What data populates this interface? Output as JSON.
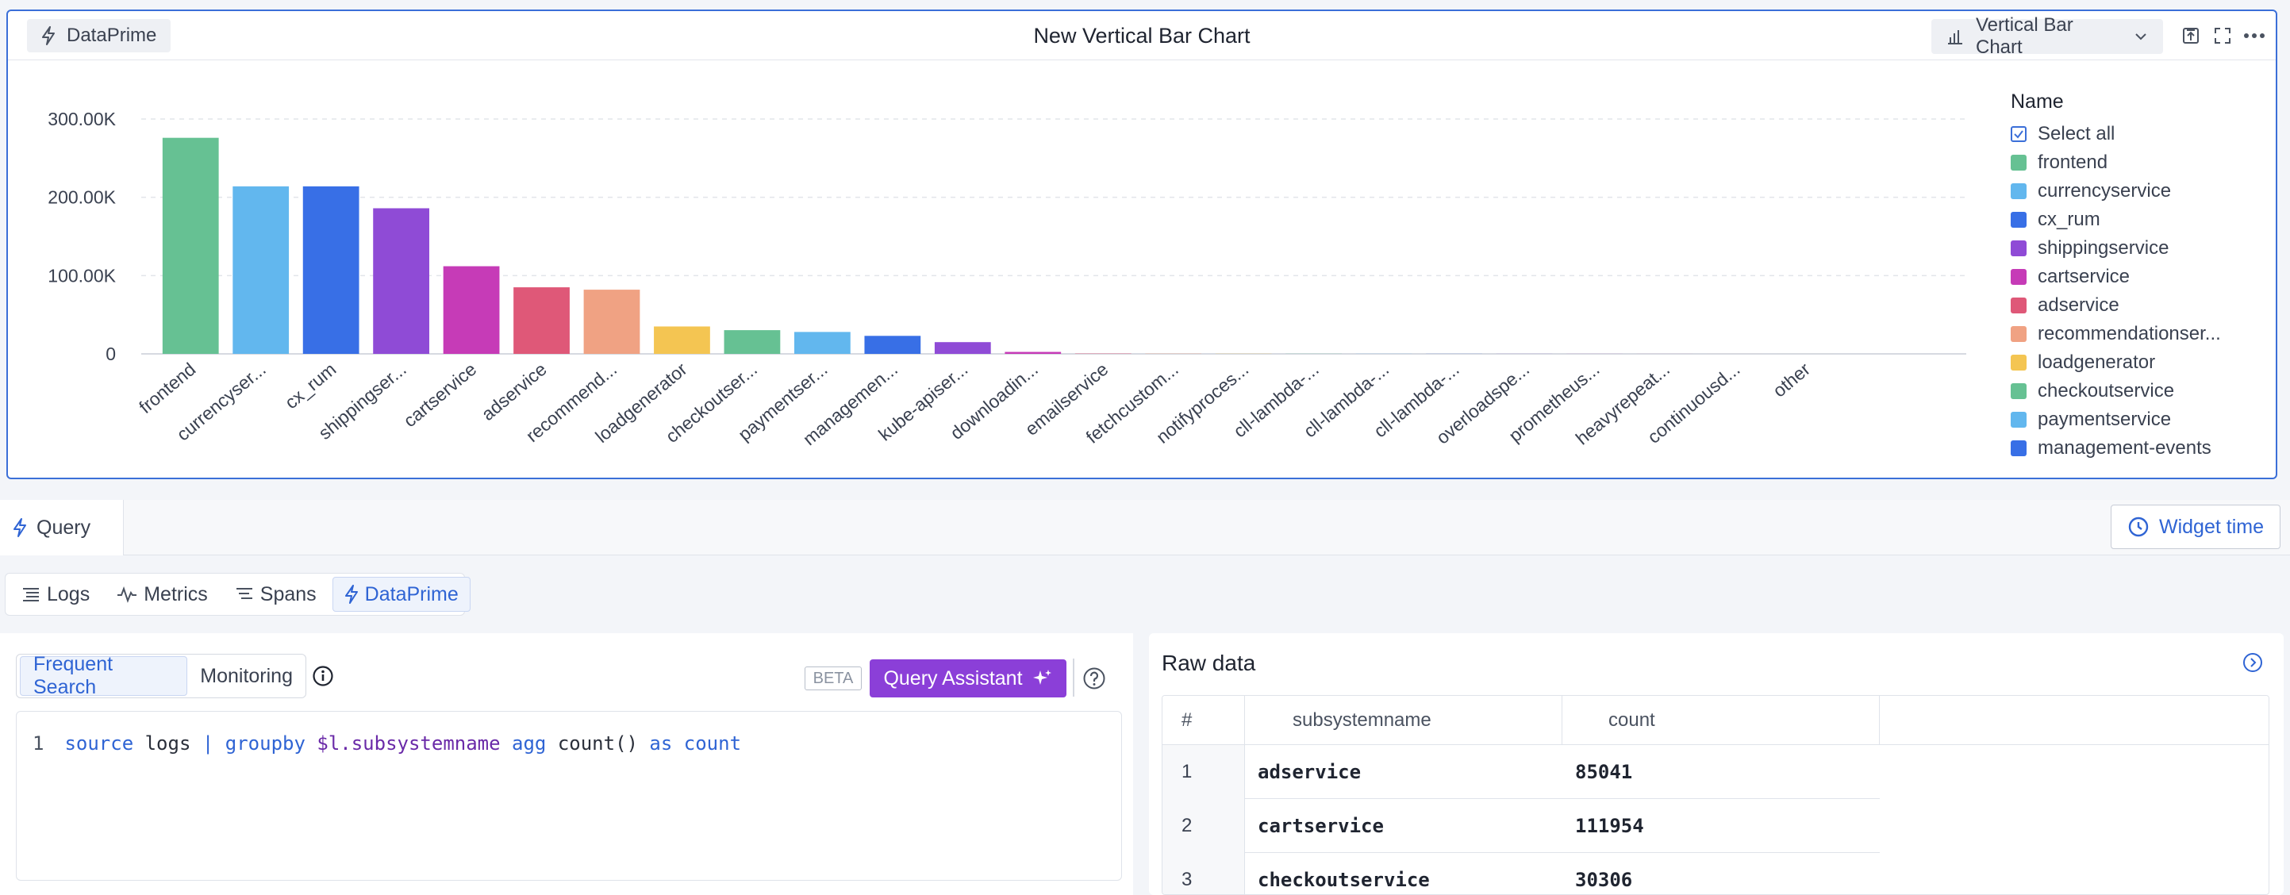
{
  "widget": {
    "source_badge": "DataPrime",
    "title": "New Vertical Bar Chart",
    "chart_type_label": "Vertical Bar Chart"
  },
  "chart_data": {
    "type": "bar",
    "categories": [
      "frontend",
      "currencyser...",
      "cx_rum",
      "shippingser...",
      "cartservice",
      "adservice",
      "recommend...",
      "loadgenerator",
      "checkoutser...",
      "paymentser...",
      "managemen...",
      "kube-apiser...",
      "downloadin...",
      "emailservice",
      "fetchcustom...",
      "notifyproces...",
      "cll-lambda-...",
      "cll-lambda-...",
      "cll-lambda-...",
      "overloadspe...",
      "prometheus...",
      "heavyrepeat...",
      "continuousd...",
      "other"
    ],
    "values": [
      276000,
      214000,
      214000,
      186000,
      111954,
      85041,
      82000,
      35000,
      30306,
      28000,
      23000,
      15000,
      2500,
      400,
      300,
      200,
      150,
      120,
      100,
      80,
      60,
      40,
      30,
      20
    ],
    "colors": [
      "#66c193",
      "#62b7ee",
      "#386fe6",
      "#8f4bd6",
      "#c63bb7",
      "#df5878",
      "#f0a283",
      "#f4c552",
      "#66c193",
      "#62b7ee",
      "#386fe6",
      "#8f4bd6",
      "#c63bb7",
      "#df5878",
      "#f0a283",
      "#f4c552",
      "#66c193",
      "#62b7ee",
      "#386fe6",
      "#8f4bd6",
      "#c63bb7",
      "#df5878",
      "#f0a283",
      "#f4c552"
    ],
    "y_ticks": [
      {
        "value": 0,
        "label": "0"
      },
      {
        "value": 100000,
        "label": "100.00K"
      },
      {
        "value": 200000,
        "label": "200.00K"
      },
      {
        "value": 300000,
        "label": "300.00K"
      }
    ],
    "ylim": [
      0,
      300000
    ],
    "grid": true,
    "legend": "right"
  },
  "legend": {
    "title": "Name",
    "select_all": "Select all",
    "items": [
      {
        "label": "frontend",
        "color": "#66c193"
      },
      {
        "label": "currencyservice",
        "color": "#62b7ee"
      },
      {
        "label": "cx_rum",
        "color": "#386fe6"
      },
      {
        "label": "shippingservice",
        "color": "#8f4bd6"
      },
      {
        "label": "cartservice",
        "color": "#c63bb7"
      },
      {
        "label": "adservice",
        "color": "#df5878"
      },
      {
        "label": "recommendationser...",
        "color": "#f0a283"
      },
      {
        "label": "loadgenerator",
        "color": "#f4c552"
      },
      {
        "label": "checkoutservice",
        "color": "#66c193"
      },
      {
        "label": "paymentservice",
        "color": "#62b7ee"
      },
      {
        "label": "management-events",
        "color": "#386fe6"
      }
    ]
  },
  "query": {
    "tab_label": "Query",
    "widget_time_label": "Widget time",
    "sources": [
      "Logs",
      "Metrics",
      "Spans",
      "DataPrime"
    ],
    "active_source": "DataPrime",
    "modes": [
      "Frequent Search",
      "Monitoring"
    ],
    "beta_label": "BETA",
    "assistant_label": "Query Assistant",
    "line_number": "1",
    "code_tokens": [
      {
        "t": "source",
        "c": "kw"
      },
      {
        "t": " logs ",
        "c": "pl"
      },
      {
        "t": "|",
        "c": "kw"
      },
      {
        "t": " ",
        "c": "pl"
      },
      {
        "t": "groupby",
        "c": "kw"
      },
      {
        "t": " ",
        "c": "pl"
      },
      {
        "t": "$l.subsystemname",
        "c": "var"
      },
      {
        "t": " ",
        "c": "pl"
      },
      {
        "t": "agg",
        "c": "kw"
      },
      {
        "t": " count() ",
        "c": "pl"
      },
      {
        "t": "as",
        "c": "kw"
      },
      {
        "t": " ",
        "c": "pl"
      },
      {
        "t": "count",
        "c": "kw"
      }
    ]
  },
  "raw_data": {
    "title": "Raw data",
    "columns": [
      "#",
      "subsystemname",
      "count"
    ],
    "rows": [
      {
        "idx": "1",
        "name": "adservice",
        "count": "85041"
      },
      {
        "idx": "2",
        "name": "cartservice",
        "count": "111954"
      },
      {
        "idx": "3",
        "name": "checkoutservice",
        "count": "30306"
      }
    ]
  }
}
